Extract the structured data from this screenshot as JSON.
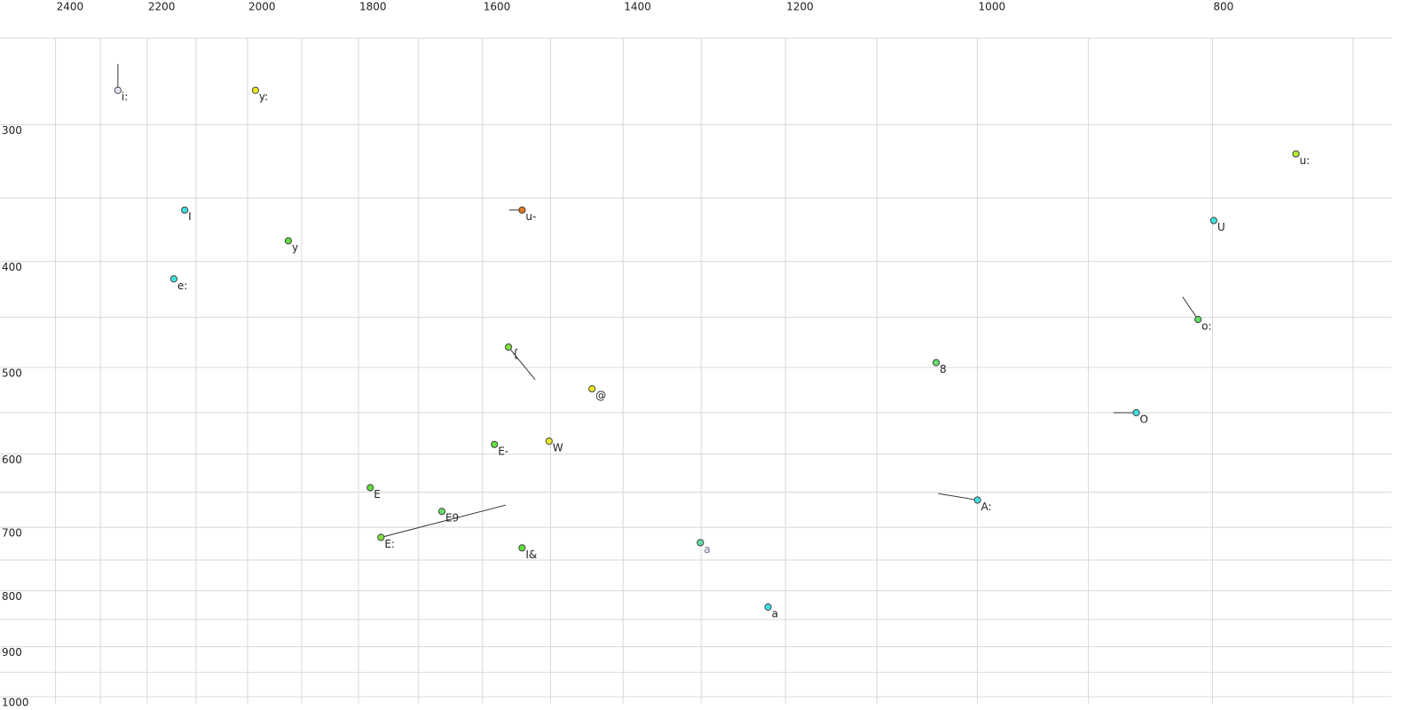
{
  "chart_data": {
    "type": "scatter",
    "xscale": "log",
    "yscale": "log",
    "grid": true,
    "xlim": [
      2530,
      675
    ],
    "ylim": [
      250,
      1015
    ],
    "xticks": [
      2400,
      2200,
      2000,
      1800,
      1600,
      1400,
      1200,
      1000,
      800
    ],
    "xminor": [
      2300,
      2100,
      1900,
      1700,
      1500,
      1300,
      1100,
      900,
      700
    ],
    "yticks": [
      300,
      400,
      500,
      600,
      700,
      800,
      900,
      1000
    ],
    "yminor": [
      250,
      350,
      450,
      550,
      650,
      750,
      850,
      950
    ],
    "points": [
      {
        "label": "i:",
        "x": 2262,
        "y": 279,
        "color": "#e4e4ff",
        "trail": [
          2262,
          264
        ]
      },
      {
        "label": "y:",
        "x": 1985,
        "y": 279,
        "color": "#e8e820"
      },
      {
        "label": "u:",
        "x": 739,
        "y": 319,
        "color": "#b8e830"
      },
      {
        "label": "I",
        "x": 2123,
        "y": 359,
        "color": "#40e0e0"
      },
      {
        "label": "u-",
        "x": 1541,
        "y": 359,
        "color": "#e07820",
        "trail": [
          1560,
          359
        ]
      },
      {
        "label": "y",
        "x": 1924,
        "y": 383,
        "color": "#60e040"
      },
      {
        "label": "U",
        "x": 799,
        "y": 367,
        "color": "#40e0e0"
      },
      {
        "label": "e:",
        "x": 2145,
        "y": 415,
        "color": "#40e0e0"
      },
      {
        "label": "o:",
        "x": 811,
        "y": 452,
        "color": "#60e060",
        "trail": [
          823,
          431
        ]
      },
      {
        "label": "{",
        "x": 1561,
        "y": 479,
        "color": "#80e040",
        "trail": [
          1522,
          513
        ]
      },
      {
        "label": "8",
        "x": 1040,
        "y": 495,
        "color": "#60e070"
      },
      {
        "label": "@",
        "x": 1442,
        "y": 523,
        "color": "#e8e820"
      },
      {
        "label": "O",
        "x": 860,
        "y": 550,
        "color": "#40e0e0",
        "trail": [
          879,
          550
        ]
      },
      {
        "label": "E-",
        "x": 1582,
        "y": 588,
        "color": "#60e040"
      },
      {
        "label": "W",
        "x": 1502,
        "y": 584,
        "color": "#e8e820"
      },
      {
        "label": "E",
        "x": 1780,
        "y": 644,
        "color": "#60e040"
      },
      {
        "label": "A:",
        "x": 1000,
        "y": 661,
        "color": "#40e0e0",
        "trail": [
          1038,
          652
        ]
      },
      {
        "label": "E9",
        "x": 1663,
        "y": 677,
        "color": "#60e060"
      },
      {
        "label": "E:",
        "x": 1762,
        "y": 715,
        "color": "#80e040",
        "trail": [
          1565,
          668
        ]
      },
      {
        "label": "a",
        "x": 1301,
        "y": 723,
        "color": "#60e0a0",
        "label_color": "#707090"
      },
      {
        "label": "I&",
        "x": 1541,
        "y": 731,
        "color": "#60e040"
      },
      {
        "label": "a",
        "x": 1220,
        "y": 828,
        "color": "#40e0e0"
      }
    ]
  }
}
